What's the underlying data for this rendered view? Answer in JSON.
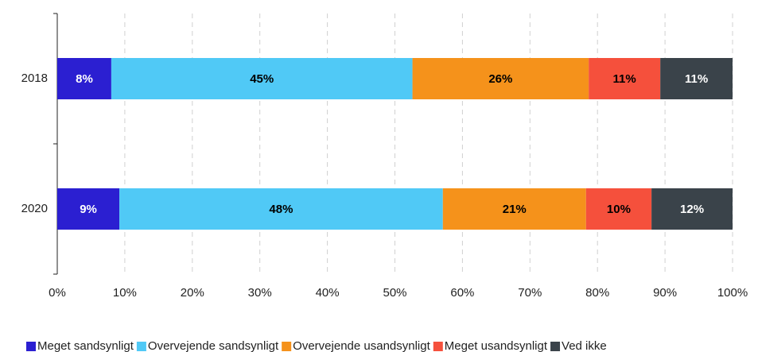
{
  "chart_data": {
    "type": "stacked_barh",
    "categories": [
      "2018",
      "2020"
    ],
    "series": [
      {
        "name": "Meget sandsynligt",
        "color": "#2b1fd1",
        "text_color": "#ffffff",
        "values": [
          8,
          9.2
        ],
        "value_labels": [
          "8%",
          "9%"
        ]
      },
      {
        "name": "Overvejende sandsynligt",
        "color": "#50c9f6",
        "text_color": "#000000",
        "values": [
          44.6,
          47.9
        ],
        "value_labels": [
          "45%",
          "48%"
        ]
      },
      {
        "name": "Overvejende usandsynligt",
        "color": "#f5921b",
        "text_color": "#000000",
        "values": [
          26.1,
          21.2
        ],
        "value_labels": [
          "26%",
          "21%"
        ]
      },
      {
        "name": "Meget usandsynligt",
        "color": "#f5503c",
        "text_color": "#000000",
        "values": [
          10.6,
          9.7
        ],
        "value_labels": [
          "11%",
          "10%"
        ]
      },
      {
        "name": "Ved ikke",
        "color": "#3a434a",
        "text_color": "#ffffff",
        "values": [
          10.7,
          12
        ],
        "value_labels": [
          "11%",
          "12%"
        ]
      }
    ],
    "xlim": [
      0,
      100
    ],
    "xticks": [
      {
        "value": 0,
        "label": "0%"
      },
      {
        "value": 10,
        "label": "10%"
      },
      {
        "value": 20,
        "label": "20%"
      },
      {
        "value": 30,
        "label": "30%"
      },
      {
        "value": 40,
        "label": "40%"
      },
      {
        "value": 50,
        "label": "50%"
      },
      {
        "value": 60,
        "label": "60%"
      },
      {
        "value": 70,
        "label": "70%"
      },
      {
        "value": 80,
        "label": "80%"
      },
      {
        "value": 90,
        "label": "90%"
      },
      {
        "value": 100,
        "label": "100%"
      }
    ],
    "grid": true,
    "legend": "bottom"
  }
}
